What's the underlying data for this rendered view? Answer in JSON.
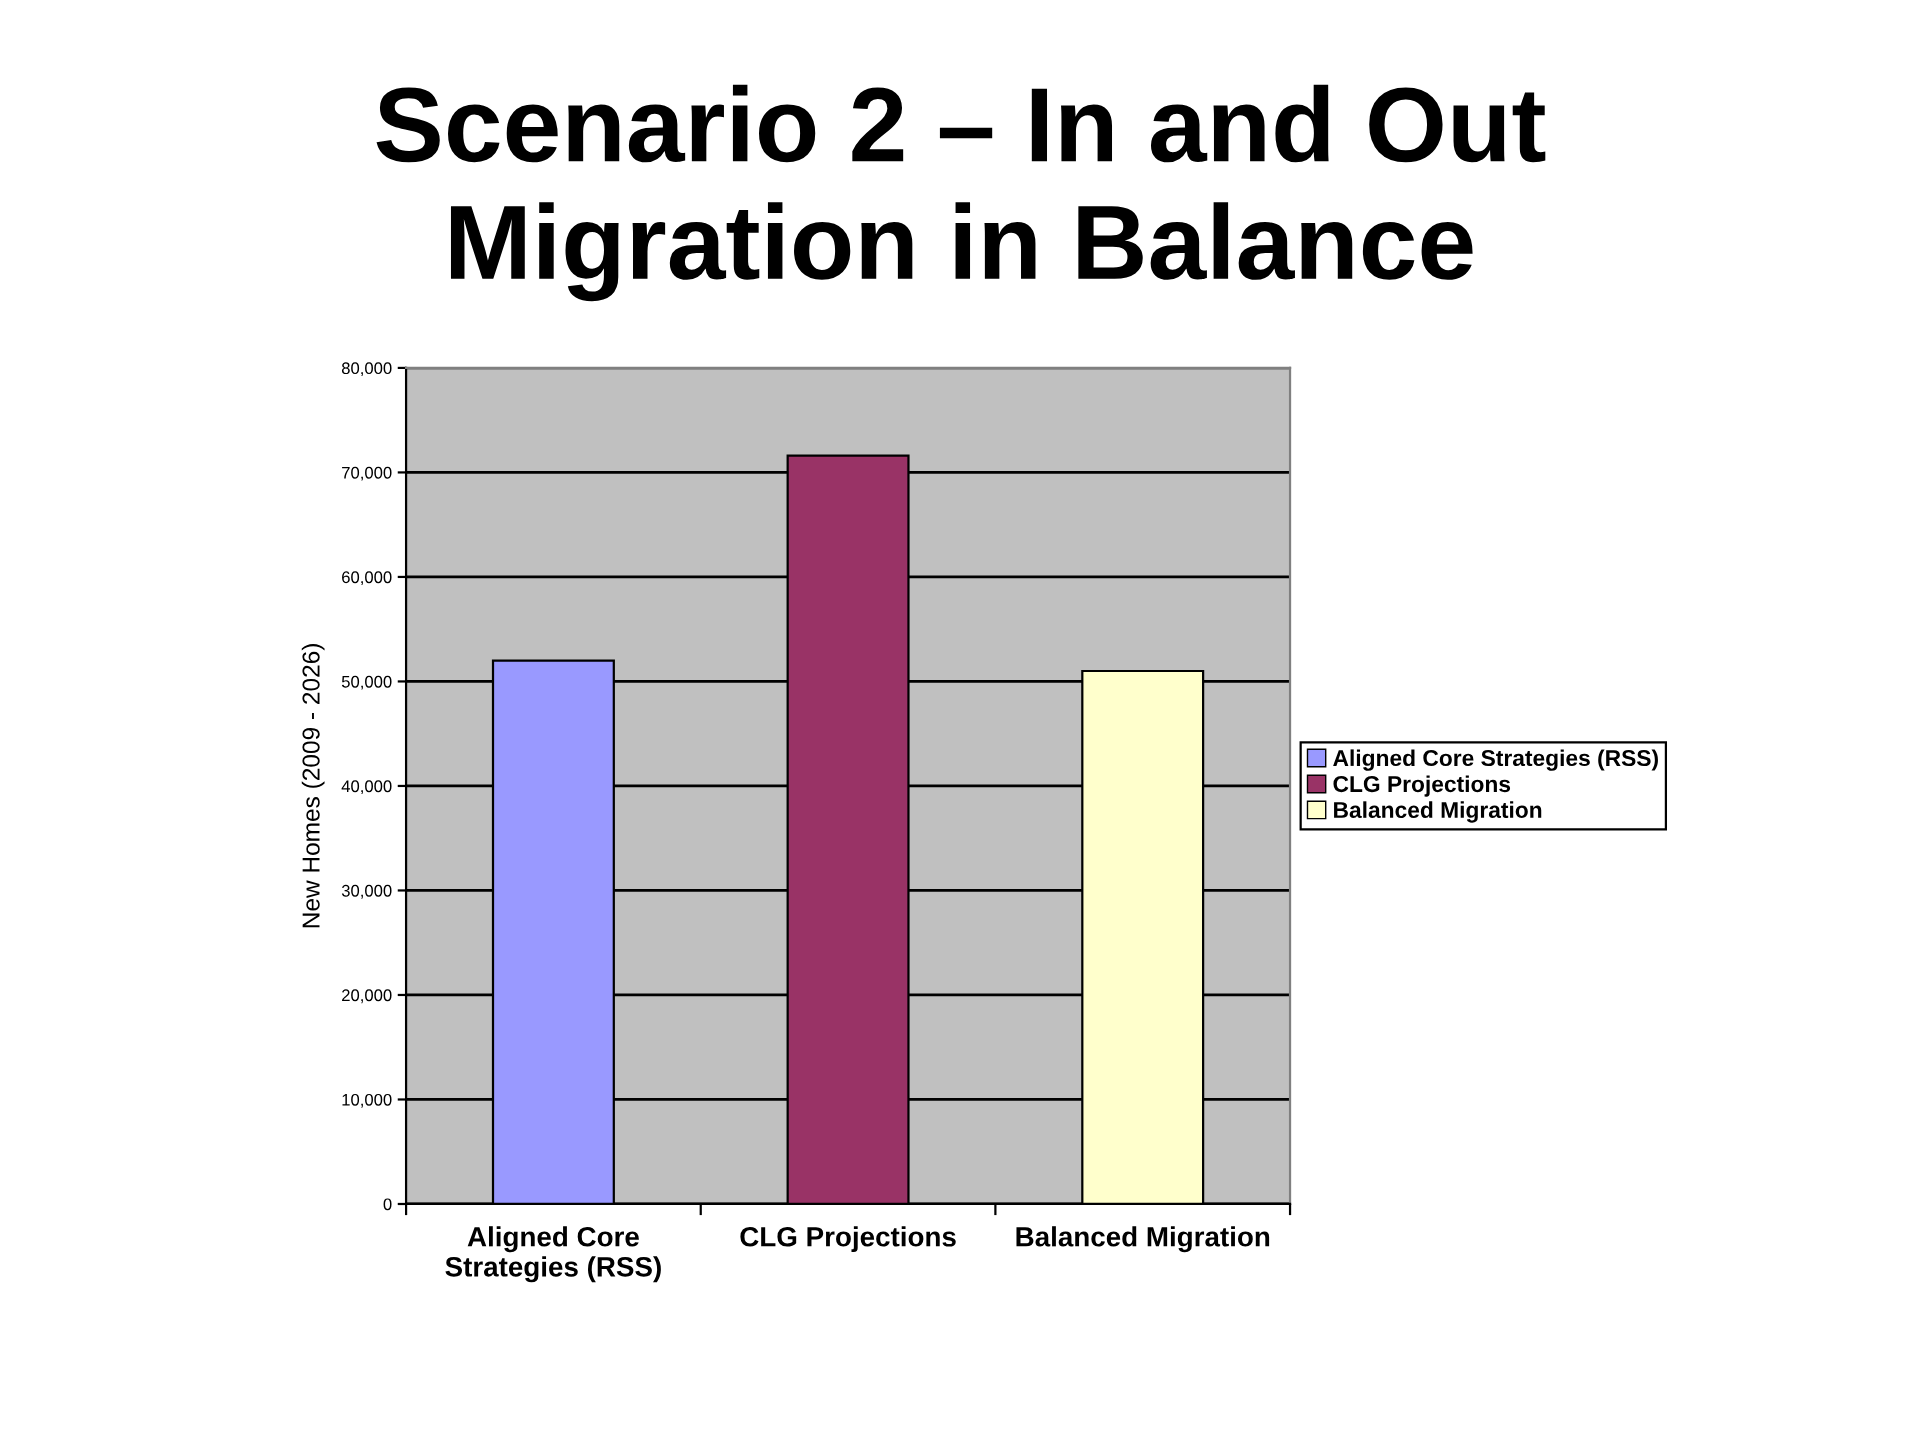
{
  "chart_data": {
    "type": "bar",
    "title": "Scenario 2 – In and Out\nMigration in Balance",
    "ylabel": "New Homes (2009 - 2026)",
    "categories": [
      "Aligned Core Strategies (RSS)",
      "CLG Projections",
      "Balanced Migration"
    ],
    "series": [
      {
        "name": "Aligned Core Strategies (RSS)",
        "color": "#9999ff",
        "values": [
          52000,
          null,
          null
        ]
      },
      {
        "name": "CLG Projections",
        "color": "#993366",
        "values": [
          null,
          71600,
          null
        ]
      },
      {
        "name": "Balanced Migration",
        "color": "#ffffcc",
        "values": [
          null,
          null,
          51000
        ]
      }
    ],
    "ylim": [
      0,
      80000
    ],
    "yticks": [
      0,
      {
        "value": 10000,
        "label": "10,000"
      },
      {
        "value": 20000,
        "label": "20,000"
      },
      {
        "value": 30000,
        "label": "30,000"
      },
      {
        "value": 40000,
        "label": "40,000"
      },
      {
        "value": 50000,
        "label": "50,000"
      },
      {
        "value": 60000,
        "label": "60,000"
      },
      {
        "value": 70000,
        "label": "70,000"
      },
      {
        "value": 80000,
        "label": "80,000"
      }
    ],
    "grid": "y",
    "legend": "right"
  }
}
